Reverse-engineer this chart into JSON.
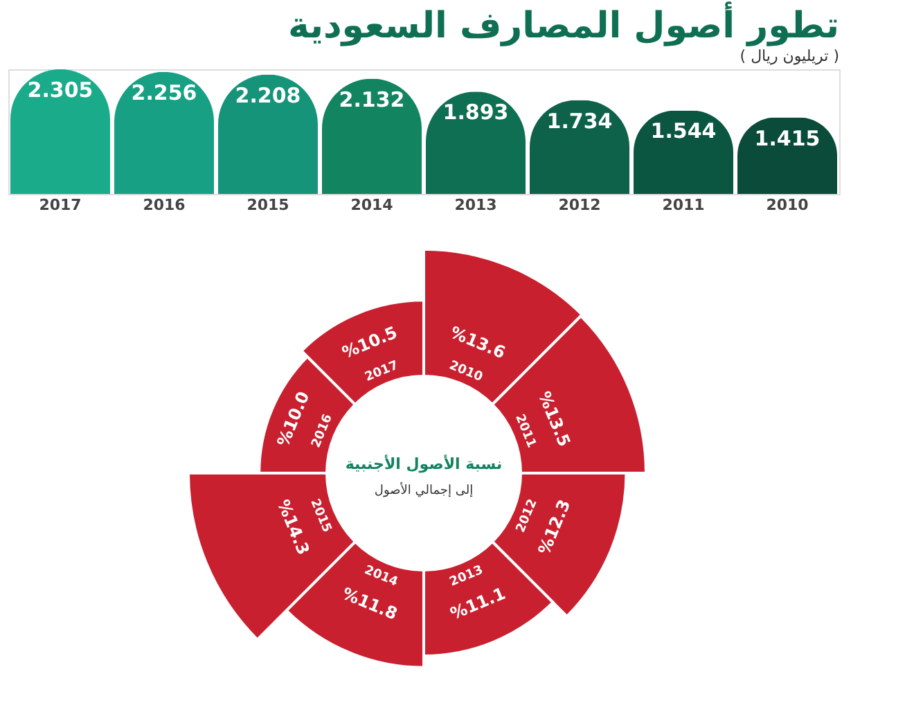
{
  "chart_data": [
    {
      "type": "bar",
      "title": "تطور أصول المصارف السعودية",
      "subtitle": "( تريليون ريال )",
      "categories": [
        "2017",
        "2016",
        "2015",
        "2014",
        "2013",
        "2012",
        "2011",
        "2010"
      ],
      "values": [
        2.305,
        2.256,
        2.208,
        2.132,
        1.893,
        1.734,
        1.544,
        1.415
      ],
      "colors": [
        "#1aab8a",
        "#17a083",
        "#159479",
        "#12845f",
        "#0f6f52",
        "#0d6249",
        "#0b5641",
        "#0a4b39"
      ],
      "data_labels": true,
      "tick_labels": "x"
    },
    {
      "type": "other",
      "title": "نسبة الأصول الأجنبية",
      "subtitle": "إلى إجمالي الأصول",
      "categories": [
        "2010",
        "2011",
        "2012",
        "2013",
        "2014",
        "2015",
        "2016",
        "2017"
      ],
      "values": [
        13.6,
        13.5,
        12.3,
        11.1,
        11.8,
        14.3,
        10.0,
        10.5
      ],
      "value_labels": [
        "%13.6",
        "%13.5",
        "%12.3",
        "%11.1",
        "%11.8",
        "%14.3",
        "%10.0",
        "%10.5"
      ],
      "colors": [
        "#c8202f",
        "#c8202f",
        "#c8202f",
        "#c8202f",
        "#c8202f",
        "#c8202f",
        "#c8202f",
        "#c8202f"
      ]
    }
  ]
}
